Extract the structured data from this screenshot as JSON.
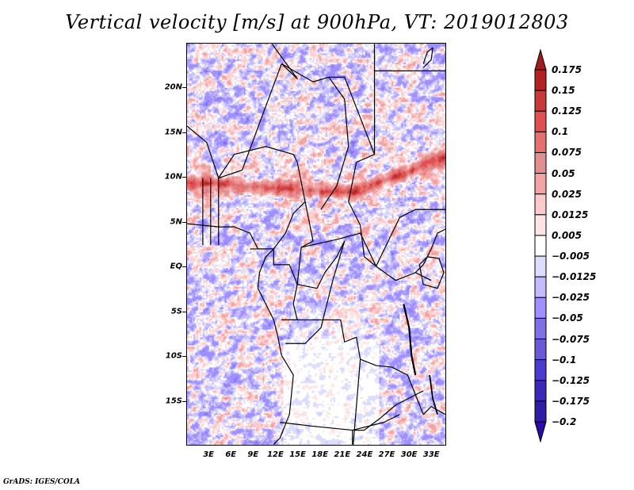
{
  "title": "Vertical velocity [m/s] at 900hPa, VT: 2019012803",
  "credit": "GrADS: IGES/COLA",
  "chart_data": {
    "type": "heatmap",
    "title": "Vertical velocity [m/s] at 900hPa, VT: 2019012803",
    "variable": "Vertical velocity",
    "units": "m/s",
    "level": "900hPa",
    "valid_time": "2019012803",
    "projection": "lat-lon",
    "lon_range": [
      0,
      35
    ],
    "lat_range": [
      -20,
      25
    ],
    "x_ticks": [
      "3E",
      "6E",
      "9E",
      "12E",
      "15E",
      "18E",
      "21E",
      "24E",
      "27E",
      "30E",
      "33E"
    ],
    "x_tick_values": [
      3,
      6,
      9,
      12,
      15,
      18,
      21,
      24,
      27,
      30,
      33
    ],
    "y_ticks": [
      "20N",
      "15N",
      "10N",
      "5N",
      "EQ",
      "5S",
      "10S",
      "15S"
    ],
    "y_tick_values": [
      20,
      15,
      10,
      5,
      0,
      -5,
      -10,
      -15
    ],
    "colorbar": {
      "orientation": "vertical",
      "placement": "right",
      "extend": "both",
      "labels": [
        "0.175",
        "0.15",
        "0.125",
        "0.1",
        "0.075",
        "0.05",
        "0.025",
        "0.0125",
        "0.005",
        "-0.005",
        "-0.0125",
        "-0.025",
        "-0.05",
        "-0.075",
        "-0.1",
        "-0.125",
        "-0.175",
        "-0.2"
      ],
      "levels": [
        0.175,
        0.15,
        0.125,
        0.1,
        0.075,
        0.05,
        0.025,
        0.0125,
        0.005,
        -0.005,
        -0.0125,
        -0.025,
        -0.05,
        -0.075,
        -0.1,
        -0.125,
        -0.175,
        -0.2
      ],
      "top_extend_color": "#a01c1c",
      "bottom_extend_color": "#2a0aa8",
      "colors": [
        "#b32222",
        "#c83a3a",
        "#e05050",
        "#e57070",
        "#e08e90",
        "#f5a2a2",
        "#fccaca",
        "#fde4e4",
        "#ffffff",
        "#dcdcfc",
        "#c4baff",
        "#a090ff",
        "#8070e8",
        "#6a5ad8",
        "#4a3ccc",
        "#3c28b8",
        "#2e1ea6"
      ]
    },
    "features": [
      "country boundaries",
      "coastlines",
      "lakes"
    ],
    "notable_patterns": [
      "narrow band of strong ascent (red) near 8-10N from 0E to 35E",
      "weak values (mostly white) over southern DRC, Angola and Zambia interior",
      "mixed small-scale ascent/descent over Atlantic and Sahara"
    ]
  }
}
